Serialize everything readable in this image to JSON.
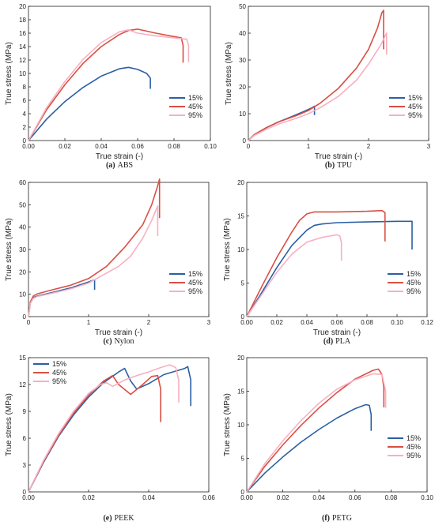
{
  "figure": {
    "colors": {
      "15%": "#2b5fa3",
      "45%": "#d94f43",
      "95%": "#f7b0c0",
      "axis": "#222222"
    }
  },
  "chart_data": [
    {
      "id": "abs",
      "type": "line",
      "caption_letter": "(a)",
      "caption_name": "ABS",
      "xlabel": "True strain (-)",
      "ylabel": "True stress (MPa)",
      "xlim": [
        0,
        0.1
      ],
      "ylim": [
        0,
        20
      ],
      "xticks": [
        "0.00",
        "0.02",
        "0.04",
        "0.06",
        "0.08",
        "0.10"
      ],
      "xtick_values": [
        0,
        0.02,
        0.04,
        0.06,
        0.08,
        0.1
      ],
      "yticks": [
        "0",
        "2",
        "4",
        "6",
        "8",
        "10",
        "12",
        "14",
        "16",
        "18",
        "20"
      ],
      "ytick_values": [
        0,
        2,
        4,
        6,
        8,
        10,
        12,
        14,
        16,
        18,
        20
      ],
      "legend_position": "right",
      "series": [
        {
          "name": "15%",
          "x": [
            0,
            0.01,
            0.02,
            0.03,
            0.04,
            0.05,
            0.055,
            0.06,
            0.065,
            0.067,
            0.067
          ],
          "y": [
            0,
            3.2,
            5.8,
            7.9,
            9.6,
            10.7,
            10.9,
            10.6,
            10.0,
            9.3,
            7.7
          ]
        },
        {
          "name": "45%",
          "x": [
            0,
            0.01,
            0.02,
            0.03,
            0.04,
            0.05,
            0.055,
            0.06,
            0.07,
            0.08,
            0.084,
            0.085,
            0.085
          ],
          "y": [
            0,
            4.6,
            8.3,
            11.5,
            14.0,
            15.8,
            16.4,
            16.6,
            16.0,
            15.5,
            15.3,
            14.2,
            11.6
          ]
        },
        {
          "name": "95%",
          "x": [
            0,
            0.01,
            0.02,
            0.03,
            0.04,
            0.05,
            0.055,
            0.06,
            0.07,
            0.08,
            0.087,
            0.088,
            0.088
          ],
          "y": [
            0,
            4.9,
            8.8,
            12.1,
            14.6,
            16.2,
            16.5,
            16.0,
            15.6,
            15.3,
            15.1,
            14.2,
            11.7
          ]
        }
      ]
    },
    {
      "id": "tpu",
      "type": "line",
      "caption_letter": "(b)",
      "caption_name": "TPU",
      "xlabel": "True strain (-)",
      "ylabel": "True stress (MPa)",
      "xlim": [
        0,
        3
      ],
      "ylim": [
        0,
        50
      ],
      "xticks": [
        "0",
        "1",
        "2",
        "3"
      ],
      "xtick_values": [
        0,
        1,
        2,
        3
      ],
      "yticks": [
        "0",
        "10",
        "20",
        "30",
        "40",
        "50"
      ],
      "ytick_values": [
        0,
        10,
        20,
        30,
        40,
        50
      ],
      "legend_position": "right",
      "series": [
        {
          "name": "15%",
          "x": [
            0,
            0.1,
            0.3,
            0.5,
            0.7,
            0.9,
            1.05,
            1.1,
            1.1
          ],
          "y": [
            0,
            2.2,
            4.8,
            6.9,
            8.7,
            10.6,
            12.1,
            12.8,
            9.5
          ]
        },
        {
          "name": "45%",
          "x": [
            0,
            0.1,
            0.3,
            0.5,
            0.8,
            1.0,
            1.2,
            1.5,
            1.8,
            2.0,
            2.15,
            2.22,
            2.25,
            2.25
          ],
          "y": [
            0,
            2.2,
            4.8,
            6.9,
            9.3,
            11.2,
            14.0,
            19.5,
            27.0,
            34.0,
            42.0,
            47.5,
            48.5,
            34.0
          ]
        },
        {
          "name": "95%",
          "x": [
            0,
            0.1,
            0.3,
            0.5,
            0.8,
            1.0,
            1.2,
            1.5,
            1.8,
            2.0,
            2.2,
            2.3,
            2.3
          ],
          "y": [
            0,
            1.9,
            4.2,
            6.1,
            8.3,
            10.0,
            12.3,
            16.5,
            22.5,
            28.5,
            35.5,
            40.0,
            32.0
          ]
        }
      ]
    },
    {
      "id": "nylon",
      "type": "line",
      "caption_letter": "(c)",
      "caption_name": "Nylon",
      "xlabel": "True strain (-)",
      "ylabel": "True stress (MPa)",
      "xlim": [
        0,
        3
      ],
      "ylim": [
        0,
        60
      ],
      "xticks": [
        "0",
        "1",
        "2",
        "3"
      ],
      "xtick_values": [
        0,
        1,
        2,
        3
      ],
      "yticks": [
        "0",
        "10",
        "20",
        "30",
        "40",
        "50",
        "60"
      ],
      "ytick_values": [
        0,
        10,
        20,
        30,
        40,
        50,
        60
      ],
      "legend_position": "right",
      "series": [
        {
          "name": "15%",
          "x": [
            0,
            0.03,
            0.08,
            0.15,
            0.4,
            0.7,
            1.0,
            1.1,
            1.1
          ],
          "y": [
            0,
            6.0,
            8.5,
            9.2,
            10.8,
            12.8,
            15.5,
            16.5,
            12.0
          ]
        },
        {
          "name": "45%",
          "x": [
            0,
            0.03,
            0.08,
            0.15,
            0.4,
            0.7,
            1.0,
            1.3,
            1.6,
            1.9,
            2.05,
            2.15,
            2.18,
            2.18
          ],
          "y": [
            0,
            6.5,
            9.2,
            10.2,
            12.0,
            14.0,
            17.0,
            22.5,
            31.0,
            41.0,
            50.0,
            58.5,
            61.5,
            44.0
          ]
        },
        {
          "name": "95%",
          "x": [
            0,
            0.03,
            0.08,
            0.15,
            0.4,
            0.7,
            1.0,
            1.3,
            1.5,
            1.7,
            1.9,
            2.05,
            2.15,
            2.15
          ],
          "y": [
            0,
            5.8,
            8.2,
            9.0,
            10.5,
            12.4,
            15.0,
            19.5,
            22.5,
            27.0,
            35.0,
            43.0,
            49.5,
            36.0
          ]
        }
      ]
    },
    {
      "id": "pla",
      "type": "line",
      "caption_letter": "(d)",
      "caption_name": "PLA",
      "xlabel": "True strain (-)",
      "ylabel": "True stress (MPa)",
      "xlim": [
        0,
        0.12
      ],
      "ylim": [
        0,
        20
      ],
      "xticks": [
        "0.00",
        "0.02",
        "0.04",
        "0.06",
        "0.08",
        "0.10",
        "0.12"
      ],
      "xtick_values": [
        0,
        0.02,
        0.04,
        0.06,
        0.08,
        0.1,
        0.12
      ],
      "yticks": [
        "0",
        "5",
        "10",
        "15",
        "20"
      ],
      "ytick_values": [
        0,
        5,
        10,
        15,
        20
      ],
      "legend_position": "right",
      "series": [
        {
          "name": "15%",
          "x": [
            0,
            0.01,
            0.02,
            0.03,
            0.04,
            0.045,
            0.05,
            0.06,
            0.08,
            0.1,
            0.11,
            0.11
          ],
          "y": [
            0,
            3.6,
            7.3,
            10.6,
            12.9,
            13.6,
            13.8,
            14.0,
            14.1,
            14.2,
            14.2,
            10.0
          ]
        },
        {
          "name": "45%",
          "x": [
            0,
            0.01,
            0.02,
            0.03,
            0.035,
            0.04,
            0.045,
            0.06,
            0.08,
            0.09,
            0.092,
            0.092
          ],
          "y": [
            0,
            4.5,
            8.8,
            12.6,
            14.3,
            15.3,
            15.6,
            15.6,
            15.7,
            15.8,
            15.5,
            11.2
          ]
        },
        {
          "name": "95%",
          "x": [
            0,
            0.01,
            0.02,
            0.03,
            0.04,
            0.05,
            0.055,
            0.06,
            0.062,
            0.063,
            0.063
          ],
          "y": [
            0,
            3.3,
            6.6,
            9.3,
            11.1,
            11.8,
            12.0,
            12.2,
            12.0,
            11.0,
            8.3
          ]
        }
      ]
    },
    {
      "id": "peek",
      "type": "line",
      "caption_letter": "(e)",
      "caption_name": "PEEK",
      "xlabel": "",
      "ylabel": "True stress (MPa)",
      "xlim": [
        0,
        0.06
      ],
      "ylim": [
        0,
        15
      ],
      "xticks": [
        "0.00",
        "0.02",
        "0.04",
        "0.06"
      ],
      "xtick_values": [
        0,
        0.02,
        0.04,
        0.06
      ],
      "yticks": [
        "0",
        "3",
        "6",
        "9",
        "12",
        "15"
      ],
      "ytick_values": [
        0,
        3,
        6,
        9,
        12,
        15
      ],
      "legend_position": "top-left",
      "series": [
        {
          "name": "15%",
          "x": [
            0,
            0.005,
            0.01,
            0.015,
            0.02,
            0.025,
            0.03,
            0.032,
            0.034,
            0.036,
            0.04,
            0.045,
            0.05,
            0.052,
            0.053,
            0.054,
            0.054
          ],
          "y": [
            0,
            3.3,
            6.2,
            8.6,
            10.6,
            12.2,
            13.4,
            13.8,
            12.4,
            11.5,
            12.1,
            13.1,
            13.6,
            13.8,
            14.0,
            12.5,
            9.6
          ]
        },
        {
          "name": "45%",
          "x": [
            0,
            0.005,
            0.01,
            0.015,
            0.02,
            0.025,
            0.028,
            0.03,
            0.034,
            0.038,
            0.041,
            0.043,
            0.044,
            0.044
          ],
          "y": [
            0,
            3.4,
            6.3,
            8.8,
            10.8,
            12.4,
            13.0,
            12.0,
            10.9,
            12.0,
            12.9,
            13.0,
            11.5,
            7.8
          ]
        },
        {
          "name": "95%",
          "x": [
            0,
            0.005,
            0.01,
            0.015,
            0.02,
            0.024,
            0.026,
            0.028,
            0.032,
            0.036,
            0.04,
            0.044,
            0.047,
            0.049,
            0.05,
            0.05
          ],
          "y": [
            0,
            3.5,
            6.5,
            9.0,
            11.0,
            12.0,
            12.2,
            11.8,
            12.5,
            13.0,
            13.4,
            13.9,
            14.2,
            13.9,
            12.5,
            10.0
          ]
        }
      ]
    },
    {
      "id": "petg",
      "type": "line",
      "caption_letter": "(f)",
      "caption_name": "PETG",
      "xlabel": "",
      "ylabel": "True stress (MPa)",
      "xlim": [
        0,
        0.1
      ],
      "ylim": [
        0,
        20
      ],
      "xticks": [
        "0.00",
        "0.02",
        "0.04",
        "0.06",
        "0.08",
        "0.10"
      ],
      "xtick_values": [
        0,
        0.02,
        0.04,
        0.06,
        0.08,
        0.1
      ],
      "yticks": [
        "0",
        "5",
        "10",
        "15",
        "20"
      ],
      "ytick_values": [
        0,
        5,
        10,
        15,
        20
      ],
      "legend_position": "right",
      "series": [
        {
          "name": "15%",
          "x": [
            0,
            0.01,
            0.02,
            0.03,
            0.04,
            0.05,
            0.06,
            0.066,
            0.068,
            0.069,
            0.069
          ],
          "y": [
            0,
            2.8,
            5.2,
            7.4,
            9.3,
            11.0,
            12.4,
            13.0,
            12.9,
            11.5,
            9.1
          ]
        },
        {
          "name": "45%",
          "x": [
            0,
            0.01,
            0.02,
            0.03,
            0.04,
            0.05,
            0.06,
            0.07,
            0.073,
            0.075,
            0.076,
            0.076
          ],
          "y": [
            0,
            3.8,
            7.0,
            9.9,
            12.5,
            14.8,
            16.8,
            18.1,
            18.3,
            17.5,
            15.5,
            12.6
          ]
        },
        {
          "name": "95%",
          "x": [
            0,
            0.01,
            0.02,
            0.03,
            0.04,
            0.05,
            0.06,
            0.07,
            0.075,
            0.077,
            0.077
          ],
          "y": [
            0,
            4.2,
            7.6,
            10.6,
            13.2,
            15.3,
            16.7,
            17.6,
            17.5,
            15.0,
            12.5
          ]
        }
      ]
    }
  ]
}
